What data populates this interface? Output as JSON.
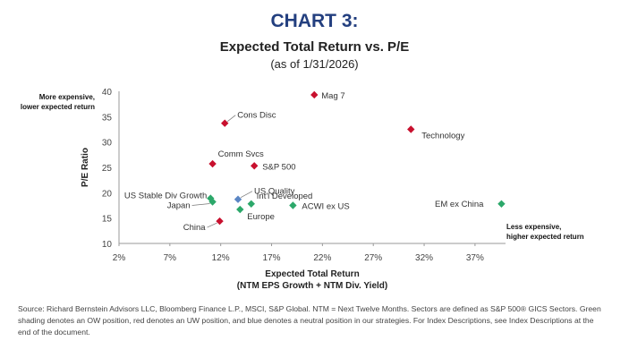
{
  "header": {
    "chart_label": "CHART 3:",
    "title": "Expected Total Return vs. P/E",
    "subtitle": "(as of 1/31/2026)"
  },
  "annotations": {
    "top_left": [
      "More expensive,",
      "lower expected return"
    ],
    "bottom_right": [
      "Less expensive,",
      "higher expected return"
    ]
  },
  "source_text": "Source: Richard Bernstein Advisors LLC, Bloomberg Finance L.P., MSCI, S&P Global. NTM = Next Twelve Months. Sectors are defined as S&P 500® GICS Sectors. Green shading denotes an OW position, red denotes an UW position, and blue denotes a neutral position in our strategies. For Index Descriptions, see Index Descriptions at the end of the document.",
  "colors": {
    "overweight": "#2ca86a",
    "underweight": "#c8102e",
    "neutral": "#5b86c4",
    "title_blue": "#233f7f"
  },
  "chart_data": {
    "type": "scatter",
    "title": "Expected Total Return vs. P/E",
    "xlabel": "Expected Total Return",
    "xlabel_sub": "(NTM EPS Growth + NTM Div. Yield)",
    "ylabel": "P/E Ratio",
    "xlim": [
      2,
      40
    ],
    "ylim": [
      10,
      40
    ],
    "xticks": [
      2,
      7,
      12,
      17,
      22,
      27,
      32,
      37
    ],
    "xtick_labels": [
      "2%",
      "7%",
      "12%",
      "17%",
      "22%",
      "27%",
      "32%",
      "37%"
    ],
    "yticks": [
      10,
      15,
      20,
      25,
      30,
      35,
      40
    ],
    "ytick_labels": [
      "10",
      "15",
      "20",
      "25",
      "30",
      "35",
      "40"
    ],
    "points": [
      {
        "name": "Mag 7",
        "x": 21.2,
        "y": 39.3,
        "status": "underweight"
      },
      {
        "name": "Technology",
        "x": 30.7,
        "y": 32.5,
        "status": "underweight"
      },
      {
        "name": "Cons Disc",
        "x": 12.4,
        "y": 33.7,
        "status": "underweight"
      },
      {
        "name": "Comm Svcs",
        "x": 11.2,
        "y": 25.7,
        "status": "underweight"
      },
      {
        "name": "S&P 500",
        "x": 15.3,
        "y": 25.3,
        "status": "underweight"
      },
      {
        "name": "US Quality",
        "x": 13.7,
        "y": 18.7,
        "status": "neutral"
      },
      {
        "name": "US Stable Div Growth",
        "x": 11.0,
        "y": 18.9,
        "status": "overweight"
      },
      {
        "name": "Japan",
        "x": 11.2,
        "y": 18.2,
        "status": "overweight"
      },
      {
        "name": "Int'l Developed",
        "x": 15.0,
        "y": 17.8,
        "status": "overweight"
      },
      {
        "name": "Europe",
        "x": 13.9,
        "y": 16.7,
        "status": "overweight"
      },
      {
        "name": "ACWI ex US",
        "x": 19.1,
        "y": 17.5,
        "status": "overweight"
      },
      {
        "name": "China",
        "x": 11.9,
        "y": 14.4,
        "status": "underweight"
      },
      {
        "name": "EM ex China",
        "x": 39.6,
        "y": 17.8,
        "status": "overweight"
      }
    ]
  }
}
